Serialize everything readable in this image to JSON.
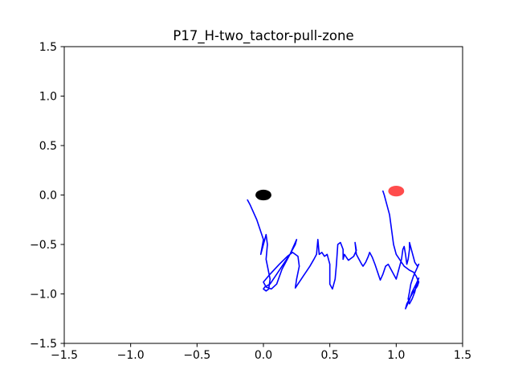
{
  "chart_data": {
    "type": "line",
    "title": "P17_H-two_tactor-pull-zone",
    "xlabel": "",
    "ylabel": "",
    "xlim": [
      -1.5,
      1.5
    ],
    "ylim": [
      -1.5,
      1.5
    ],
    "grid": false,
    "xticks": [
      -1.5,
      -1.0,
      -0.5,
      0.0,
      0.5,
      1.0,
      1.5
    ],
    "yticks": [
      -1.5,
      -1.0,
      -0.5,
      0.0,
      0.5,
      1.0,
      1.5
    ],
    "xtick_labels": [
      "−1.5",
      "−1.0",
      "−0.5",
      "0.0",
      "0.5",
      "1.0",
      "1.5"
    ],
    "ytick_labels": [
      "−1.5",
      "−1.0",
      "−0.5",
      "0.0",
      "0.5",
      "1.0",
      "1.5"
    ],
    "markers": [
      {
        "name": "start",
        "x": 0.0,
        "y": 0.0,
        "rx": 0.06,
        "ry": 0.06,
        "color": "#000000",
        "opacity": 1.0
      },
      {
        "name": "target",
        "x": 1.0,
        "y": 0.04,
        "rx": 0.06,
        "ry": 0.06,
        "color": "#ff0000",
        "opacity": 0.7
      }
    ],
    "series": [
      {
        "color": "#0000ff",
        "x": [
          -0.12,
          -0.1,
          -0.05,
          0.0,
          -0.02,
          -0.01,
          0.02,
          0.03,
          0.02,
          0.05,
          0.04,
          0.02,
          0.0,
          0.01,
          0.05,
          0.1,
          0.15,
          0.2,
          0.24,
          0.25,
          0.2,
          0.14,
          0.1,
          0.06,
          0.02,
          0.0,
          0.05,
          0.12,
          0.18,
          0.22,
          0.26,
          0.27,
          0.25,
          0.24,
          0.26,
          0.28,
          0.3,
          0.32,
          0.35,
          0.38,
          0.4,
          0.41,
          0.42,
          0.44,
          0.46,
          0.48,
          0.5,
          0.5,
          0.52,
          0.54,
          0.55,
          0.56,
          0.58,
          0.6,
          0.6,
          0.61,
          0.62,
          0.64,
          0.66,
          0.68,
          0.7,
          0.69,
          0.7,
          0.72,
          0.74,
          0.75,
          0.77,
          0.79,
          0.8,
          0.82,
          0.84,
          0.85,
          0.86,
          0.87,
          0.88,
          0.9,
          0.92,
          0.94,
          0.96,
          0.98,
          1.0,
          1.02,
          1.04,
          1.05,
          1.06,
          1.07,
          1.08,
          1.09,
          1.1,
          1.1,
          1.12,
          1.14,
          1.16,
          1.17,
          1.15,
          1.13,
          1.11,
          1.1,
          1.09,
          1.1,
          1.12,
          1.14,
          1.15,
          1.16,
          1.17,
          1.15,
          1.12,
          1.1,
          1.08,
          1.07,
          1.08,
          1.1,
          1.12,
          1.14,
          1.16,
          1.17,
          1.15,
          1.13,
          1.1,
          1.08,
          1.06,
          1.05,
          1.04,
          1.03,
          1.02,
          1.0,
          0.98,
          0.97,
          0.96,
          0.95,
          0.93,
          0.92,
          0.91,
          0.9
        ],
        "y": [
          -0.05,
          -0.1,
          -0.25,
          -0.45,
          -0.6,
          -0.55,
          -0.4,
          -0.5,
          -0.65,
          -0.85,
          -0.95,
          -0.97,
          -0.95,
          -0.93,
          -0.9,
          -0.8,
          -0.7,
          -0.6,
          -0.5,
          -0.45,
          -0.6,
          -0.75,
          -0.9,
          -0.95,
          -0.93,
          -0.88,
          -0.8,
          -0.7,
          -0.62,
          -0.58,
          -0.62,
          -0.72,
          -0.85,
          -0.94,
          -0.9,
          -0.86,
          -0.82,
          -0.78,
          -0.72,
          -0.65,
          -0.6,
          -0.45,
          -0.6,
          -0.58,
          -0.62,
          -0.6,
          -0.7,
          -0.9,
          -0.95,
          -0.85,
          -0.7,
          -0.5,
          -0.48,
          -0.55,
          -0.65,
          -0.6,
          -0.62,
          -0.66,
          -0.64,
          -0.62,
          -0.56,
          -0.48,
          -0.6,
          -0.65,
          -0.7,
          -0.72,
          -0.68,
          -0.62,
          -0.58,
          -0.63,
          -0.7,
          -0.74,
          -0.78,
          -0.82,
          -0.86,
          -0.8,
          -0.72,
          -0.7,
          -0.75,
          -0.8,
          -0.85,
          -0.75,
          -0.65,
          -0.55,
          -0.52,
          -0.6,
          -0.7,
          -0.65,
          -0.55,
          -0.48,
          -0.58,
          -0.68,
          -0.72,
          -0.7,
          -0.76,
          -0.82,
          -0.9,
          -0.98,
          -1.05,
          -1.1,
          -1.05,
          -0.98,
          -0.92,
          -0.88,
          -0.84,
          -0.9,
          -0.98,
          -1.06,
          -1.12,
          -1.15,
          -1.1,
          -1.05,
          -1.0,
          -0.96,
          -0.92,
          -0.88,
          -0.82,
          -0.78,
          -0.76,
          -0.74,
          -0.72,
          -0.7,
          -0.68,
          -0.66,
          -0.64,
          -0.6,
          -0.5,
          -0.4,
          -0.3,
          -0.2,
          -0.1,
          -0.05,
          0.0,
          0.04
        ]
      }
    ]
  }
}
